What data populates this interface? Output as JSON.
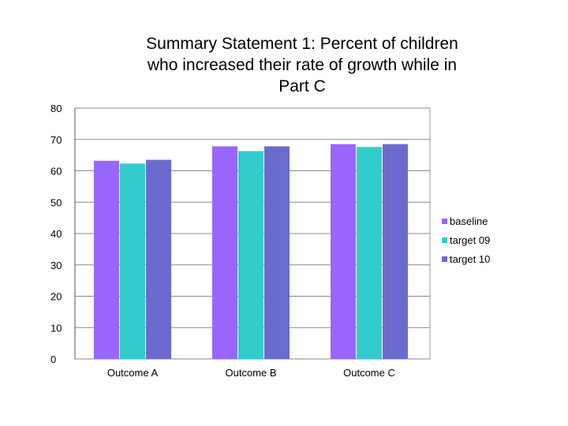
{
  "chart_data": {
    "type": "bar",
    "title": "Summary Statement 1:  Percent of children\nwho increased their rate of growth  while in\nPart C",
    "categories": [
      "Outcome A",
      "Outcome B",
      "Outcome C"
    ],
    "series": [
      {
        "name": "baseline",
        "values": [
          63.2,
          67.8,
          68.5
        ],
        "color": "#9966ff"
      },
      {
        "name": "target 09",
        "values": [
          62.3,
          66.3,
          67.6
        ],
        "color": "#33cccc"
      },
      {
        "name": "target 10",
        "values": [
          63.5,
          67.8,
          68.5
        ],
        "color": "#6b6bcf"
      }
    ],
    "xlabel": "",
    "ylabel": "",
    "ylim": [
      0,
      80
    ],
    "yticks": [
      0,
      10,
      20,
      30,
      40,
      50,
      60,
      70,
      80
    ],
    "grid": true,
    "legend_position": "right"
  }
}
